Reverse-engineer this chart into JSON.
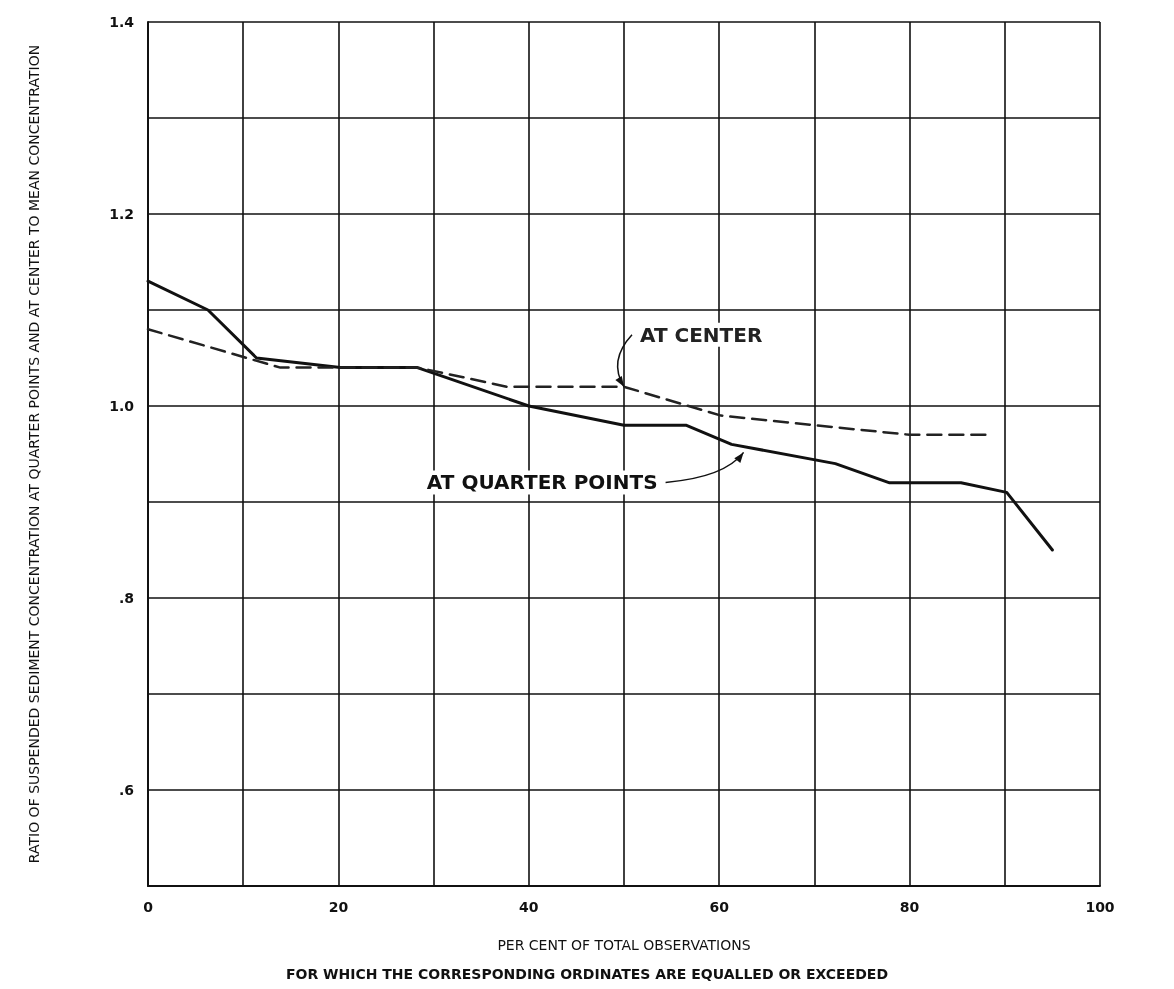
{
  "chart_data": {
    "type": "line",
    "xlabel": "PER CENT OF TOTAL OBSERVATIONS",
    "ylabel": "RATIO OF SUSPENDED SEDIMENT CONCENTRATION AT QUARTER POINTS AND AT CENTER TO MEAN CONCENTRATION",
    "annotations": [
      "FOR WHICH THE CORRESPONDING ORDINATES ARE EQUALLED OR EXCEEDED"
    ],
    "xlim": [
      0,
      100
    ],
    "xticks": [
      0,
      {
        "value": 10,
        "label": null
      },
      20,
      {
        "value": 30,
        "label": null
      },
      40,
      {
        "value": 50,
        "label": null
      },
      60,
      {
        "value": 70,
        "label": null
      },
      80,
      {
        "value": 90,
        "label": null
      },
      100
    ],
    "ylim": [
      0.5,
      1.4
    ],
    "yticks": [
      {
        "value": 0.5,
        "label": null
      },
      {
        "value": 0.6,
        "label": ".6"
      },
      {
        "value": 0.7,
        "label": null
      },
      {
        "value": 0.8,
        "label": ".8"
      },
      {
        "value": 0.9,
        "label": null
      },
      {
        "value": 1.0,
        "label": "1.0"
      },
      {
        "value": 1.1,
        "label": null
      },
      {
        "value": 1.2,
        "label": "1.2"
      },
      {
        "value": 1.3,
        "label": null
      },
      {
        "value": 1.4,
        "label": "1.4"
      }
    ],
    "grid": true,
    "legend": false,
    "marker": "none",
    "series": [
      {
        "name": "AT QUARTER POINTS",
        "color": "#111111",
        "line_style": "solid",
        "x": [
          0,
          6.3,
          11.4,
          20.2,
          28.3,
          40,
          50,
          56.5,
          61.3,
          72.2,
          77.9,
          85.4,
          90.2,
          95
        ],
        "values": [
          1.13,
          1.1,
          1.05,
          1.04,
          1.04,
          1.0,
          0.98,
          0.98,
          0.96,
          0.94,
          0.92,
          0.92,
          0.91,
          0.85
        ]
      },
      {
        "name": "AT CENTER",
        "color": "#222222",
        "line_style": "dashed",
        "x": [
          0,
          10.4,
          13.9,
          20.2,
          28.3,
          33.1,
          37.7,
          43.3,
          50,
          60.2,
          70,
          80,
          88.2
        ],
        "values": [
          1.08,
          1.05,
          1.04,
          1.04,
          1.04,
          1.03,
          1.02,
          1.02,
          1.02,
          0.99,
          0.98,
          0.97,
          0.97
        ]
      }
    ]
  }
}
